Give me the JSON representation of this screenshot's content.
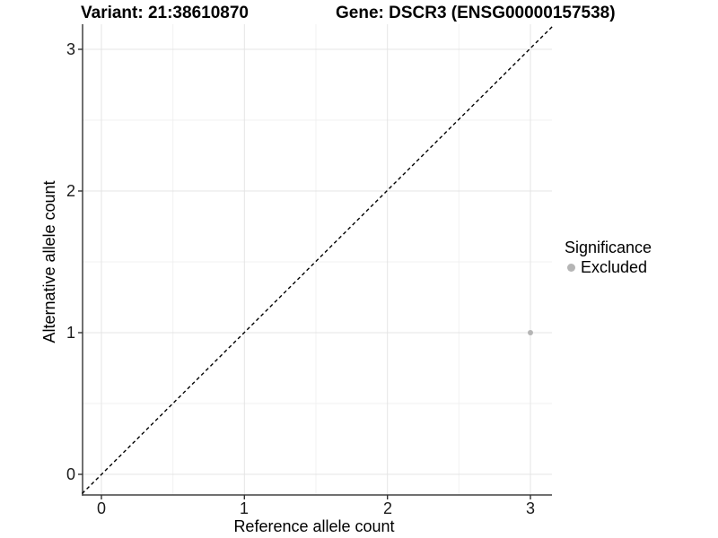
{
  "figure": {
    "titles": {
      "variant": "Variant: 21:38610870",
      "gene": "Gene: DSCR3 (ENSG00000157538)"
    }
  },
  "axes": {
    "x": {
      "label": "Reference allele count",
      "ticks": [
        "0",
        "1",
        "2",
        "3"
      ]
    },
    "y": {
      "label": "Alternative allele count",
      "ticks": [
        "0",
        "1",
        "2",
        "3"
      ]
    }
  },
  "legend": {
    "title": "Significance",
    "items": [
      {
        "label": "Excluded",
        "color": "#b5b5b5"
      }
    ]
  },
  "colors": {
    "background": "#ffffff",
    "grid_major": "#e4e4e4",
    "grid_minor": "#f1f1f1",
    "axis_line": "#404040",
    "tick_mark": "#333333",
    "identity_line": "#000000",
    "point": "#b5b5b5",
    "text": "#000000"
  },
  "chart_data": {
    "type": "scatter",
    "title": "Variant: 21:38610870    Gene: DSCR3 (ENSG00000157538)",
    "xlabel": "Reference allele count",
    "ylabel": "Alternative allele count",
    "xlim": [
      -0.15,
      3.15
    ],
    "ylim": [
      -0.15,
      3.15
    ],
    "x_ticks": [
      0,
      1,
      2,
      3
    ],
    "y_ticks": [
      0,
      1,
      2,
      3
    ],
    "grid": "major gridlines at integers, minor at 0.5 steps, light gray on white",
    "legend_position": "right-middle",
    "reference_line": {
      "type": "identity (y = x)",
      "style": "dashed",
      "color": "#000000"
    },
    "series": [
      {
        "name": "Excluded",
        "color": "#b5b5b5",
        "points": [
          {
            "x": 3,
            "y": 1
          }
        ]
      }
    ]
  }
}
